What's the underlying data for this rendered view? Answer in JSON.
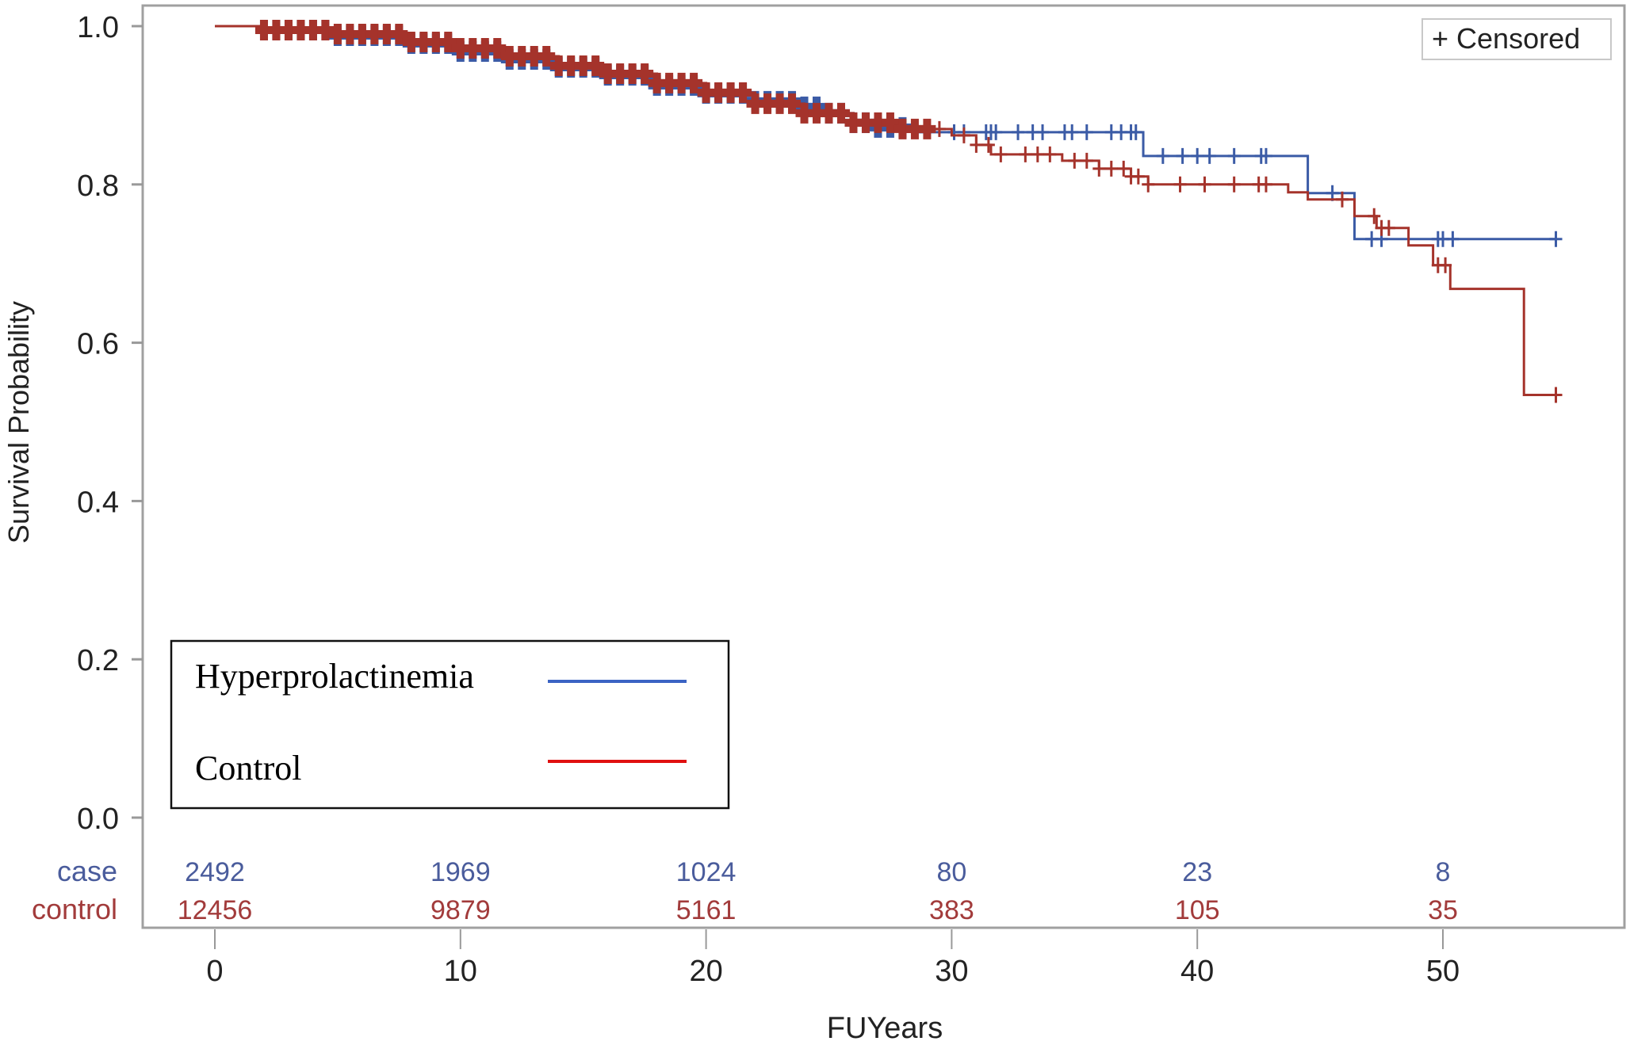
{
  "chart_data": {
    "type": "line",
    "subtype": "kaplan-meier step",
    "xlabel": "FUYears",
    "ylabel": "Survival Probability",
    "xlim": [
      -3,
      57
    ],
    "ylim": [
      0,
      1.0
    ],
    "x_ticks": [
      0,
      10,
      20,
      30,
      40,
      50
    ],
    "y_ticks": [
      "0.0",
      "0.2",
      "0.4",
      "0.6",
      "0.8",
      "1.0"
    ],
    "grid": false,
    "censor_legend": "+ Censored",
    "legend_position": "bottom-left",
    "series": [
      {
        "name": "Hyperprolactinemia",
        "color": "#3b5ba6",
        "legend_color": "#3b63c4",
        "steps": [
          [
            0,
            1.0
          ],
          [
            2,
            0.995
          ],
          [
            5,
            0.988
          ],
          [
            8,
            0.978
          ],
          [
            10,
            0.968
          ],
          [
            12,
            0.958
          ],
          [
            14,
            0.948
          ],
          [
            16,
            0.938
          ],
          [
            18,
            0.925
          ],
          [
            20,
            0.915
          ],
          [
            22,
            0.905
          ],
          [
            24,
            0.898
          ],
          [
            25,
            0.89
          ],
          [
            26,
            0.878
          ],
          [
            27,
            0.872
          ],
          [
            28.5,
            0.866
          ],
          [
            37.8,
            0.836
          ],
          [
            44.5,
            0.789
          ],
          [
            46.4,
            0.731
          ],
          [
            54.6,
            0.731
          ]
        ],
        "censored": [
          2,
          2.5,
          3,
          3.5,
          4,
          4.5,
          5,
          5.5,
          6,
          6.5,
          7,
          7.5,
          8,
          8.5,
          9,
          9.5,
          10,
          10.5,
          11,
          11.5,
          12,
          12.5,
          13,
          13.5,
          14,
          14.5,
          15,
          15.5,
          16,
          16.5,
          17,
          17.5,
          18,
          18.5,
          19,
          19.5,
          20,
          20.5,
          21,
          21.5,
          22,
          22.5,
          23,
          23.5,
          24,
          24.5,
          25,
          25.5,
          26,
          26.5,
          27,
          27.5,
          28,
          30.1,
          30.5,
          31.4,
          31.6,
          31.8,
          32.7,
          33.3,
          33.7,
          34.6,
          34.9,
          35.5,
          36.5,
          36.9,
          37.3,
          37.5,
          38.6,
          39.4,
          40.0,
          40.5,
          41.5,
          42.6,
          42.8,
          45.5,
          47.1,
          47.5,
          49.8,
          50.0,
          50.4,
          54.6
        ]
      },
      {
        "name": "Control",
        "color": "#a5332b",
        "legend_color": "#e01010",
        "steps": [
          [
            0,
            1.0
          ],
          [
            2,
            0.995
          ],
          [
            5,
            0.99
          ],
          [
            8,
            0.98
          ],
          [
            10,
            0.972
          ],
          [
            12,
            0.962
          ],
          [
            14,
            0.95
          ],
          [
            16,
            0.94
          ],
          [
            18,
            0.928
          ],
          [
            20,
            0.916
          ],
          [
            22,
            0.902
          ],
          [
            24,
            0.89
          ],
          [
            26,
            0.878
          ],
          [
            28,
            0.87
          ],
          [
            30,
            0.862
          ],
          [
            31,
            0.85
          ],
          [
            31.6,
            0.838
          ],
          [
            34.5,
            0.83
          ],
          [
            36,
            0.82
          ],
          [
            37.3,
            0.81
          ],
          [
            38,
            0.8
          ],
          [
            43.7,
            0.79
          ],
          [
            44.5,
            0.781
          ],
          [
            46.4,
            0.76
          ],
          [
            47.3,
            0.745
          ],
          [
            48.6,
            0.723
          ],
          [
            49.6,
            0.698
          ],
          [
            50.3,
            0.668
          ],
          [
            53.3,
            0.534
          ],
          [
            54.6,
            0.534
          ]
        ],
        "censored": [
          2,
          2.5,
          3,
          3.5,
          4,
          4.5,
          5,
          5.5,
          6,
          6.5,
          7,
          7.5,
          8,
          8.5,
          9,
          9.5,
          10,
          10.5,
          11,
          11.5,
          12,
          12.5,
          13,
          13.5,
          14,
          14.5,
          15,
          15.5,
          16,
          16.5,
          17,
          17.5,
          18,
          18.5,
          19,
          19.5,
          20,
          20.5,
          21,
          21.5,
          22,
          22.5,
          23,
          23.5,
          24,
          24.5,
          25,
          25.5,
          26,
          26.5,
          27,
          27.5,
          28,
          28.5,
          29,
          29.5,
          30.5,
          31,
          31.5,
          32,
          33,
          33.5,
          34,
          35,
          35.5,
          36,
          36.5,
          37,
          37.3,
          37.6,
          38,
          39.3,
          40.3,
          41.5,
          42.5,
          42.8,
          45.9,
          47.2,
          47.5,
          47.8,
          49.8,
          50.1,
          54.6
        ]
      }
    ],
    "at_risk": {
      "times": [
        0,
        10,
        20,
        30,
        40,
        50
      ],
      "rows": [
        {
          "label": "case",
          "color": "#4a5c9c",
          "values": [
            "2492",
            "1969",
            "1024",
            "80",
            "23",
            "8"
          ]
        },
        {
          "label": "control",
          "color": "#a23b3b",
          "values": [
            "12456",
            "9879",
            "5161",
            "383",
            "105",
            "35"
          ]
        }
      ]
    }
  }
}
